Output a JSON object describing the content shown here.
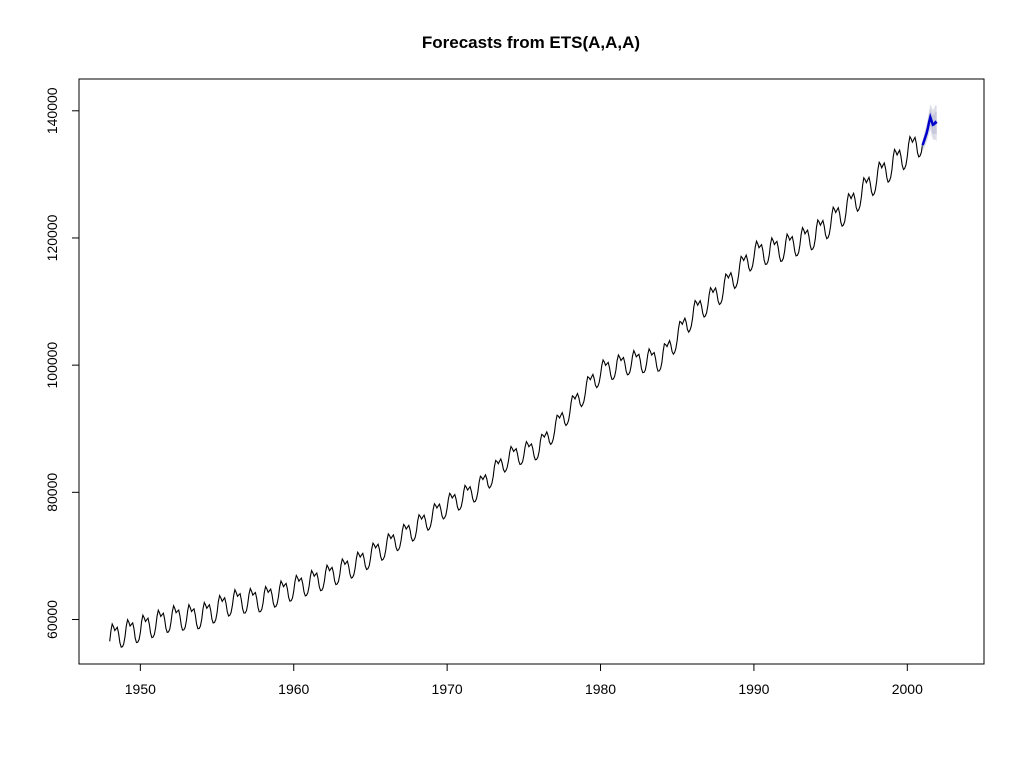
{
  "chart_data": {
    "type": "line",
    "title": "Forecasts from ETS(A,A,A)",
    "xlabel": "",
    "ylabel": "",
    "xlim": [
      1946,
      2005
    ],
    "ylim": [
      53000,
      145000
    ],
    "x_ticks": [
      1950,
      1960,
      1970,
      1980,
      1990,
      2000
    ],
    "y_ticks": [
      60000,
      80000,
      100000,
      120000,
      140000
    ],
    "x_tick_labels": [
      "1950",
      "1960",
      "1970",
      "1980",
      "1990",
      "2000"
    ],
    "y_tick_labels": [
      "60000",
      "80000",
      "100000",
      "120000",
      "140000"
    ],
    "colors": {
      "history": "#000000",
      "forecast": "#0000cc",
      "band_80": "#c8c8dc",
      "band_95": "#dedee9"
    },
    "history": {
      "start_year": 1948.0,
      "frequency": "monthly",
      "trend_anchors": [
        [
          1948.0,
          57200
        ],
        [
          1950.0,
          58600
        ],
        [
          1952.0,
          60200
        ],
        [
          1954.0,
          60600
        ],
        [
          1956.0,
          62800
        ],
        [
          1958.0,
          63200
        ],
        [
          1960.0,
          65000
        ],
        [
          1962.0,
          66600
        ],
        [
          1964.0,
          68600
        ],
        [
          1966.0,
          71500
        ],
        [
          1968.0,
          74500
        ],
        [
          1970.0,
          78000
        ],
        [
          1972.0,
          80500
        ],
        [
          1974.0,
          85500
        ],
        [
          1976.0,
          87000
        ],
        [
          1978.0,
          93000
        ],
        [
          1980.0,
          99000
        ],
        [
          1982.0,
          100500
        ],
        [
          1984.0,
          101000
        ],
        [
          1986.0,
          108000
        ],
        [
          1988.0,
          112000
        ],
        [
          1990.0,
          117500
        ],
        [
          1992.0,
          118500
        ],
        [
          1994.0,
          120500
        ],
        [
          1996.0,
          124500
        ],
        [
          1998.0,
          129500
        ],
        [
          2000.0,
          133500
        ],
        [
          2001.0,
          135500
        ]
      ],
      "seasonal_amplitude": [
        2500,
        2000,
        2700
      ]
    },
    "forecast": {
      "x": [
        2001.0,
        2001.083,
        2001.167,
        2001.25,
        2001.333,
        2001.417,
        2001.5,
        2001.583,
        2001.667,
        2001.75,
        2001.833,
        2001.917
      ],
      "mean": [
        134600,
        135200,
        135800,
        136400,
        137200,
        138200,
        139000,
        138400,
        137800,
        137900,
        138200,
        138000
      ],
      "lo80": [
        134000,
        134500,
        135000,
        135500,
        136200,
        137000,
        137700,
        137000,
        136300,
        136300,
        136500,
        136200
      ],
      "hi80": [
        135200,
        135900,
        136600,
        137300,
        138200,
        139400,
        140300,
        139800,
        139300,
        139500,
        139900,
        139800
      ],
      "lo95": [
        133700,
        134100,
        134500,
        135000,
        135600,
        136400,
        137000,
        136200,
        135500,
        135400,
        135500,
        135200
      ],
      "hi95": [
        135500,
        136300,
        137100,
        137800,
        138800,
        140000,
        141000,
        140600,
        140100,
        140400,
        140900,
        140800
      ]
    }
  }
}
